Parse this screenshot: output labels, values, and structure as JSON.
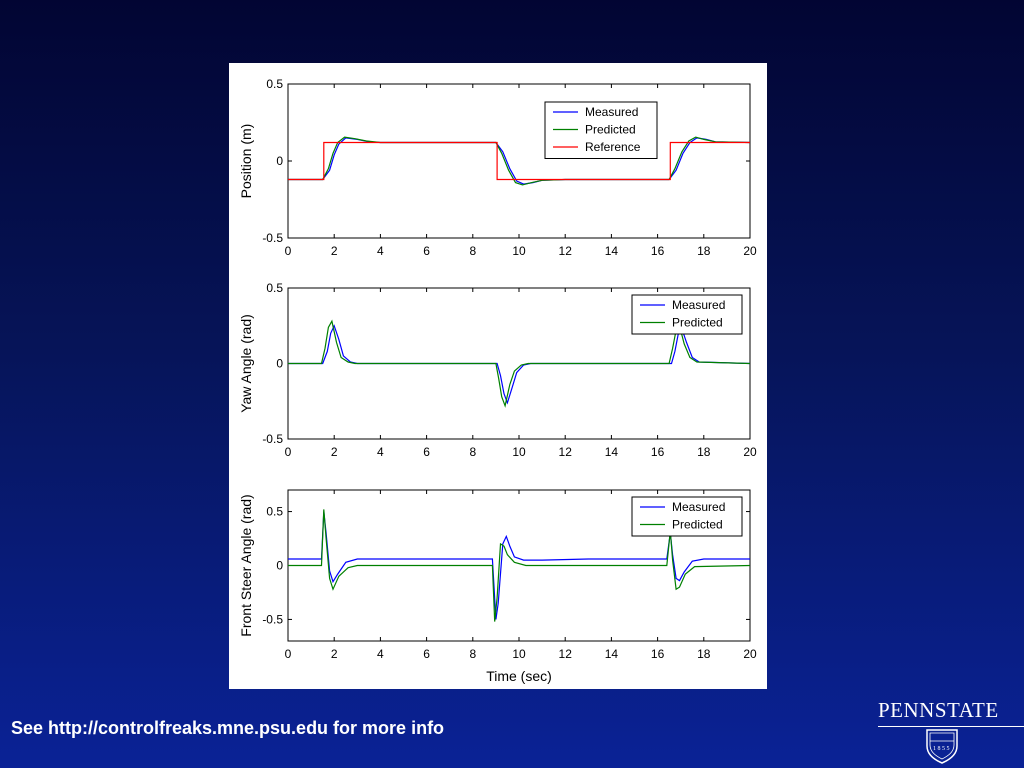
{
  "footer": {
    "text": "See http://controlfreaks.mne.psu.edu for more info"
  },
  "logo": {
    "name": "PENNSTATE",
    "year": "1855"
  },
  "colors": {
    "measured": "#0000ff",
    "predicted": "#008000",
    "reference": "#ff0000",
    "background": "#061458"
  },
  "chart_data": [
    {
      "type": "line",
      "title": "",
      "xlabel": "",
      "ylabel": "Position (m)",
      "xlim": [
        0,
        20
      ],
      "ylim": [
        -0.5,
        0.5
      ],
      "xticks": [
        "0",
        "2",
        "4",
        "6",
        "8",
        "10",
        "12",
        "14",
        "16",
        "18",
        "20"
      ],
      "yticks": [
        "-0.5",
        "0",
        "0.5"
      ],
      "ytick_values": [
        -0.5,
        0,
        0.5
      ],
      "legend_position": "top-right",
      "series": [
        {
          "name": "Measured",
          "color": "#0000ff",
          "x": [
            0,
            1.5,
            1.8,
            2.0,
            2.2,
            2.5,
            3.0,
            3.5,
            4,
            9,
            9.3,
            9.6,
            9.9,
            10.2,
            10.6,
            11.0,
            12,
            16.5,
            16.8,
            17.1,
            17.4,
            17.7,
            18.1,
            18.5,
            20
          ],
          "y": [
            -0.12,
            -0.12,
            -0.06,
            0.04,
            0.11,
            0.15,
            0.14,
            0.125,
            0.12,
            0.12,
            0.06,
            -0.05,
            -0.13,
            -0.15,
            -0.14,
            -0.125,
            -0.12,
            -0.12,
            -0.06,
            0.05,
            0.12,
            0.15,
            0.14,
            0.125,
            0.12
          ]
        },
        {
          "name": "Predicted",
          "color": "#008000",
          "x": [
            0,
            1.5,
            1.75,
            1.95,
            2.15,
            2.45,
            2.9,
            3.4,
            4,
            9,
            9.25,
            9.55,
            9.85,
            10.15,
            10.55,
            11.0,
            12,
            16.5,
            16.75,
            17.05,
            17.35,
            17.65,
            18.0,
            18.5,
            20
          ],
          "y": [
            -0.12,
            -0.12,
            -0.05,
            0.05,
            0.12,
            0.155,
            0.145,
            0.13,
            0.12,
            0.12,
            0.05,
            -0.06,
            -0.14,
            -0.155,
            -0.14,
            -0.125,
            -0.12,
            -0.12,
            -0.05,
            0.06,
            0.13,
            0.155,
            0.14,
            0.125,
            0.12
          ]
        },
        {
          "name": "Reference",
          "color": "#ff0000",
          "x": [
            0,
            1.55,
            1.55,
            9.05,
            9.05,
            16.55,
            16.55,
            20
          ],
          "y": [
            -0.12,
            -0.12,
            0.12,
            0.12,
            -0.12,
            -0.12,
            0.12,
            0.12
          ]
        }
      ]
    },
    {
      "type": "line",
      "title": "",
      "xlabel": "",
      "ylabel": "Yaw Angle (rad)",
      "xlim": [
        0,
        20
      ],
      "ylim": [
        -0.5,
        0.5
      ],
      "xticks": [
        "0",
        "2",
        "4",
        "6",
        "8",
        "10",
        "12",
        "14",
        "16",
        "18",
        "20"
      ],
      "yticks": [
        "-0.5",
        "0",
        "0.5"
      ],
      "ytick_values": [
        -0.5,
        0,
        0.5
      ],
      "legend_position": "top-right",
      "series": [
        {
          "name": "Measured",
          "color": "#0000ff",
          "x": [
            0,
            1.5,
            1.7,
            1.85,
            2.0,
            2.2,
            2.4,
            2.7,
            3.0,
            9.05,
            9.2,
            9.35,
            9.5,
            9.7,
            9.9,
            10.2,
            10.5,
            16.6,
            16.75,
            16.9,
            17.05,
            17.25,
            17.5,
            17.8,
            20
          ],
          "y": [
            0,
            0,
            0.08,
            0.2,
            0.25,
            0.16,
            0.05,
            0.01,
            0,
            0,
            -0.08,
            -0.2,
            -0.26,
            -0.16,
            -0.06,
            -0.01,
            0,
            0,
            0.08,
            0.2,
            0.23,
            0.14,
            0.04,
            0.01,
            0
          ]
        },
        {
          "name": "Predicted",
          "color": "#008000",
          "x": [
            0,
            1.45,
            1.6,
            1.75,
            1.9,
            2.1,
            2.3,
            2.6,
            2.9,
            9.0,
            9.12,
            9.25,
            9.4,
            9.6,
            9.8,
            10.1,
            10.4,
            16.5,
            16.65,
            16.8,
            16.95,
            17.15,
            17.4,
            17.7,
            20
          ],
          "y": [
            0,
            0,
            0.1,
            0.24,
            0.28,
            0.14,
            0.04,
            0.01,
            0,
            0,
            -0.1,
            -0.22,
            -0.28,
            -0.14,
            -0.05,
            -0.01,
            0,
            0,
            0.1,
            0.22,
            0.25,
            0.13,
            0.04,
            0.01,
            0
          ]
        }
      ]
    },
    {
      "type": "line",
      "title": "",
      "xlabel": "Time (sec)",
      "ylabel": "Front Steer Angle (rad)",
      "xlim": [
        0,
        20
      ],
      "ylim": [
        -0.7,
        0.7
      ],
      "xticks": [
        "0",
        "2",
        "4",
        "6",
        "8",
        "10",
        "12",
        "14",
        "16",
        "18",
        "20"
      ],
      "yticks": [
        "-0.5",
        "0",
        "0.5"
      ],
      "ytick_values": [
        -0.5,
        0,
        0.5
      ],
      "legend_position": "top-right",
      "series": [
        {
          "name": "Measured",
          "color": "#0000ff",
          "x": [
            0,
            1.45,
            1.55,
            1.65,
            1.8,
            1.95,
            2.15,
            2.5,
            3.0,
            4.0,
            6.0,
            8.0,
            8.85,
            9.0,
            9.1,
            9.3,
            9.45,
            9.6,
            9.8,
            10.2,
            11.0,
            13.0,
            15.0,
            16.4,
            16.55,
            16.65,
            16.8,
            16.95,
            17.15,
            17.5,
            18.0,
            20
          ],
          "y": [
            0.06,
            0.06,
            0.5,
            0.3,
            -0.05,
            -0.15,
            -0.08,
            0.03,
            0.06,
            0.06,
            0.06,
            0.06,
            0.06,
            -0.5,
            -0.35,
            0.2,
            0.27,
            0.18,
            0.08,
            0.05,
            0.05,
            0.06,
            0.06,
            0.06,
            0.3,
            0.1,
            -0.12,
            -0.14,
            -0.06,
            0.04,
            0.06,
            0.06
          ]
        },
        {
          "name": "Predicted",
          "color": "#008000",
          "x": [
            0,
            1.45,
            1.55,
            1.65,
            1.8,
            1.95,
            2.2,
            2.6,
            3.0,
            8.85,
            8.95,
            9.05,
            9.2,
            9.35,
            9.5,
            9.8,
            10.3,
            16.4,
            16.55,
            16.65,
            16.8,
            16.95,
            17.2,
            17.6,
            20
          ],
          "y": [
            0,
            0,
            0.52,
            0.25,
            -0.12,
            -0.22,
            -0.1,
            -0.02,
            0,
            0,
            -0.52,
            -0.3,
            0.2,
            0.18,
            0.1,
            0.03,
            0,
            0,
            0.32,
            0.05,
            -0.22,
            -0.2,
            -0.08,
            -0.01,
            0
          ]
        }
      ]
    }
  ]
}
